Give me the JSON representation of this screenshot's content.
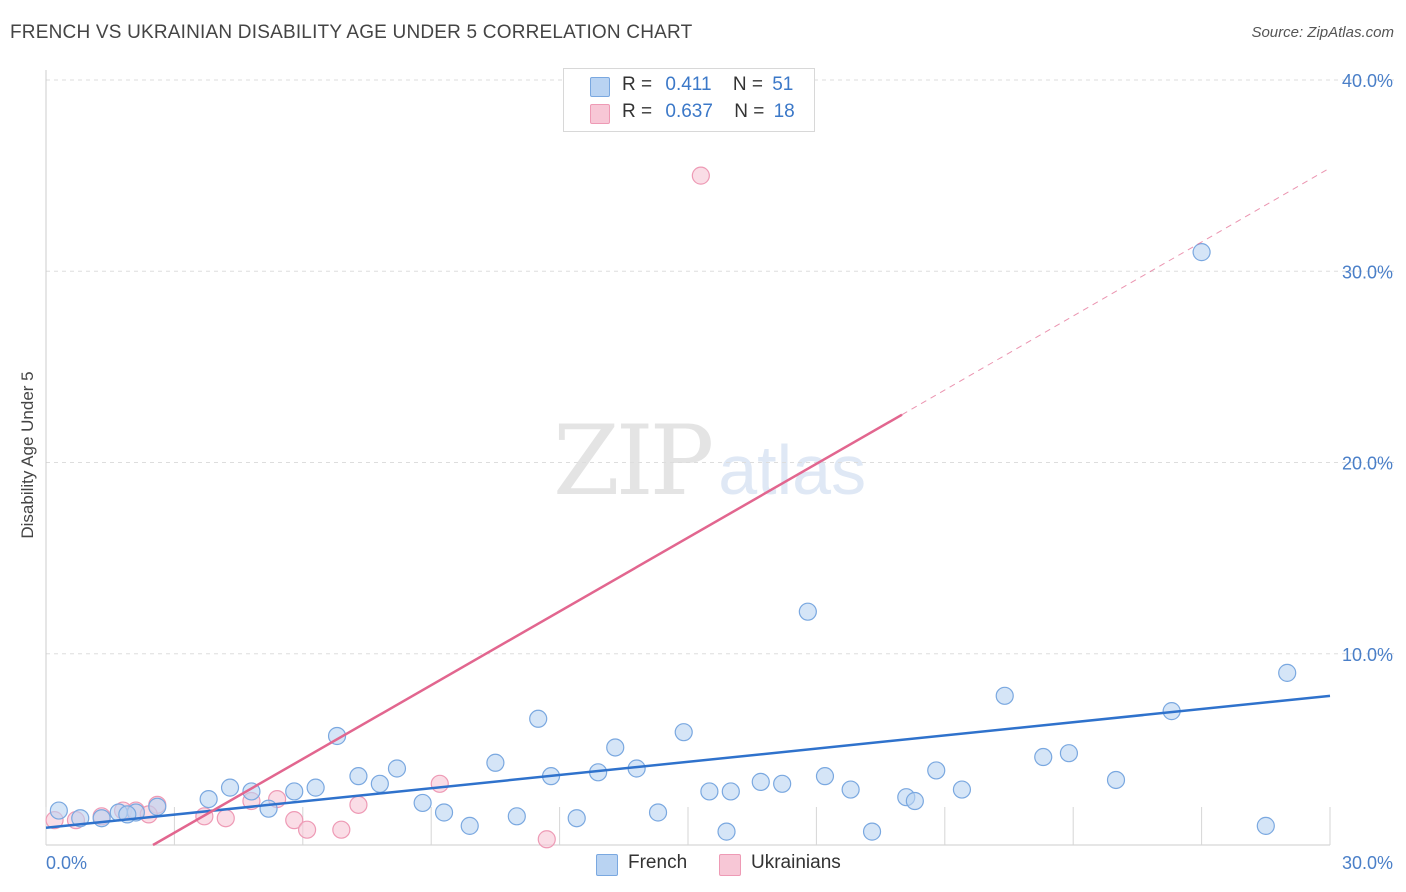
{
  "header": {
    "title": "FRENCH VS UKRAINIAN DISABILITY AGE UNDER 5 CORRELATION CHART",
    "source": "Source: ZipAtlas.com"
  },
  "watermark": {
    "zip": "ZIP",
    "atlas": "atlas"
  },
  "legend_top": {
    "rows": [
      {
        "r_label": "R =",
        "r_value": "0.411",
        "n_label": "N =",
        "n_value": "51"
      },
      {
        "r_label": "R =",
        "r_value": "0.637",
        "n_label": "N =",
        "n_value": "18"
      }
    ]
  },
  "legend_bottom": {
    "items": [
      {
        "label": "French"
      },
      {
        "label": "Ukrainians"
      }
    ]
  },
  "colors": {
    "french_fill": "#b9d3f2",
    "french_stroke": "#7aa8e0",
    "french_line": "#2f72cc",
    "ukr_fill": "#f7c7d6",
    "ukr_stroke": "#ee9ab5",
    "ukr_line": "#e2668f",
    "grid": "#dddddd",
    "tick_text": "#4a7fc8"
  },
  "chart_data": {
    "type": "scatter",
    "title": "FRENCH VS UKRAINIAN DISABILITY AGE UNDER 5 CORRELATION CHART",
    "xlabel": "",
    "ylabel": "Disability Age Under 5",
    "xlim": [
      0,
      30
    ],
    "ylim": [
      0,
      40
    ],
    "x_tick_labels": [
      "0.0%",
      "30.0%"
    ],
    "y_ticks": [
      10,
      20,
      30,
      40
    ],
    "y_tick_labels": [
      "10.0%",
      "20.0%",
      "30.0%",
      "40.0%"
    ],
    "grid": true,
    "legend": "bottom",
    "series": [
      {
        "name": "French",
        "points": [
          [
            0.3,
            1.8
          ],
          [
            0.8,
            1.4
          ],
          [
            1.3,
            1.4
          ],
          [
            1.7,
            1.7
          ],
          [
            2.1,
            1.7
          ],
          [
            2.6,
            2.0
          ],
          [
            3.8,
            2.4
          ],
          [
            4.3,
            3.0
          ],
          [
            4.8,
            2.8
          ],
          [
            5.2,
            1.9
          ],
          [
            5.8,
            2.8
          ],
          [
            6.3,
            3.0
          ],
          [
            6.8,
            5.7
          ],
          [
            7.3,
            3.6
          ],
          [
            7.8,
            3.2
          ],
          [
            8.2,
            4.0
          ],
          [
            8.8,
            2.2
          ],
          [
            9.3,
            1.7
          ],
          [
            9.9,
            1.0
          ],
          [
            10.5,
            4.3
          ],
          [
            11.0,
            1.5
          ],
          [
            11.5,
            6.6
          ],
          [
            11.8,
            3.6
          ],
          [
            12.4,
            1.4
          ],
          [
            12.9,
            3.8
          ],
          [
            13.3,
            5.1
          ],
          [
            13.8,
            4.0
          ],
          [
            14.3,
            1.7
          ],
          [
            14.9,
            5.9
          ],
          [
            15.5,
            2.8
          ],
          [
            15.9,
            0.7
          ],
          [
            16.0,
            2.8
          ],
          [
            16.7,
            3.3
          ],
          [
            17.2,
            3.2
          ],
          [
            17.8,
            12.2
          ],
          [
            18.2,
            3.6
          ],
          [
            18.8,
            2.9
          ],
          [
            19.3,
            0.7
          ],
          [
            20.1,
            2.5
          ],
          [
            20.3,
            2.3
          ],
          [
            20.8,
            3.9
          ],
          [
            21.4,
            2.9
          ],
          [
            22.4,
            7.8
          ],
          [
            23.3,
            4.6
          ],
          [
            23.9,
            4.8
          ],
          [
            25.0,
            3.4
          ],
          [
            26.3,
            7.0
          ],
          [
            27.0,
            31.0
          ],
          [
            28.5,
            1.0
          ],
          [
            29.0,
            9.0
          ],
          [
            1.9,
            1.6
          ]
        ],
        "trend": {
          "x": [
            0.0,
            30.0
          ],
          "y": [
            0.9,
            7.8
          ]
        }
      },
      {
        "name": "Ukrainians",
        "points": [
          [
            0.2,
            1.3
          ],
          [
            0.7,
            1.3
          ],
          [
            1.3,
            1.5
          ],
          [
            1.8,
            1.8
          ],
          [
            2.1,
            1.8
          ],
          [
            2.6,
            2.1
          ],
          [
            3.7,
            1.5
          ],
          [
            4.2,
            1.4
          ],
          [
            4.8,
            2.3
          ],
          [
            5.4,
            2.4
          ],
          [
            5.8,
            1.3
          ],
          [
            6.1,
            0.8
          ],
          [
            6.9,
            0.8
          ],
          [
            7.3,
            2.1
          ],
          [
            9.2,
            3.2
          ],
          [
            11.7,
            0.3
          ],
          [
            15.3,
            35.0
          ],
          [
            2.4,
            1.6
          ]
        ],
        "trend": {
          "x": [
            2.5,
            20.0
          ],
          "y": [
            0.0,
            22.5
          ]
        },
        "trend_extension": {
          "x": [
            20.0,
            30.0
          ],
          "y": [
            22.5,
            35.4
          ]
        }
      }
    ]
  }
}
